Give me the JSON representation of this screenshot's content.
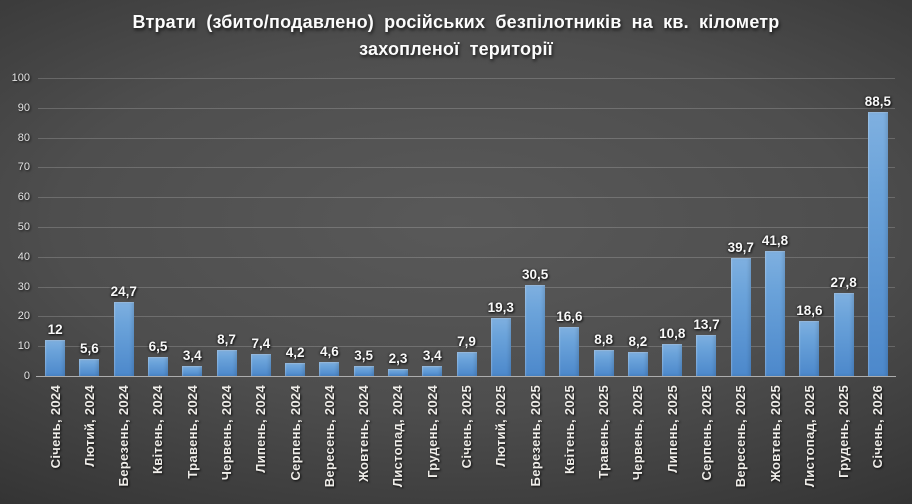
{
  "title": {
    "line1": "Втрати (збито/подавлено) російських безпілотників на кв. кілометр",
    "line2": "захопленої території"
  },
  "colors": {
    "bar_top": "#7fb0e0",
    "bar_bottom": "#4c88cb",
    "background_center": "#595959",
    "background_edge": "#1e1e1e",
    "grid_line": "rgba(255,255,255,0.18)",
    "axis_line": "#adadad",
    "text": "#f8f8f8"
  },
  "chart_data": {
    "type": "bar",
    "title": "Втрати (збито/подавлено) російських безпілотників на кв. кілометр захопленої території",
    "categories": [
      "Січень, 2024",
      "Лютий, 2024",
      "Березень, 2024",
      "Квітень, 2024",
      "Травень, 2024",
      "Червень, 2024",
      "Липень, 2024",
      "Серпень, 2024",
      "Вересень, 2024",
      "Жовтень, 2024",
      "Листопад, 2024",
      "Грудень, 2024",
      "Січень, 2025",
      "Лютий, 2025",
      "Березень, 2025",
      "Квітень, 2025",
      "Травень, 2025",
      "Червень, 2025",
      "Липень, 2025",
      "Серпень, 2025",
      "Вересень, 2025",
      "Жовтень, 2025",
      "Листопад, 2025",
      "Грудень, 2025",
      "Січень, 2026"
    ],
    "values": [
      12,
      5.6,
      24.7,
      6.5,
      3.4,
      8.7,
      7.4,
      4.2,
      4.6,
      3.5,
      2.3,
      3.4,
      7.9,
      19.3,
      30.5,
      16.6,
      8.8,
      8.2,
      10.8,
      13.7,
      39.7,
      41.8,
      18.6,
      27.8,
      88.5
    ],
    "value_labels": [
      "12",
      "5,6",
      "24,7",
      "6,5",
      "3,4",
      "8,7",
      "7,4",
      "4,2",
      "4,6",
      "3,5",
      "2,3",
      "3,4",
      "7,9",
      "19,3",
      "30,5",
      "16,6",
      "8,8",
      "8,2",
      "10,8",
      "13,7",
      "39,7",
      "41,8",
      "18,6",
      "27,8",
      "88,5"
    ],
    "xlabel": "",
    "ylabel": "",
    "ylim": [
      0,
      100
    ],
    "yticks": [
      0,
      10,
      20,
      30,
      40,
      50,
      60,
      70,
      80,
      90,
      100
    ],
    "grid": true,
    "legend": false,
    "data_labels": true,
    "category_label_rotation": 90
  }
}
